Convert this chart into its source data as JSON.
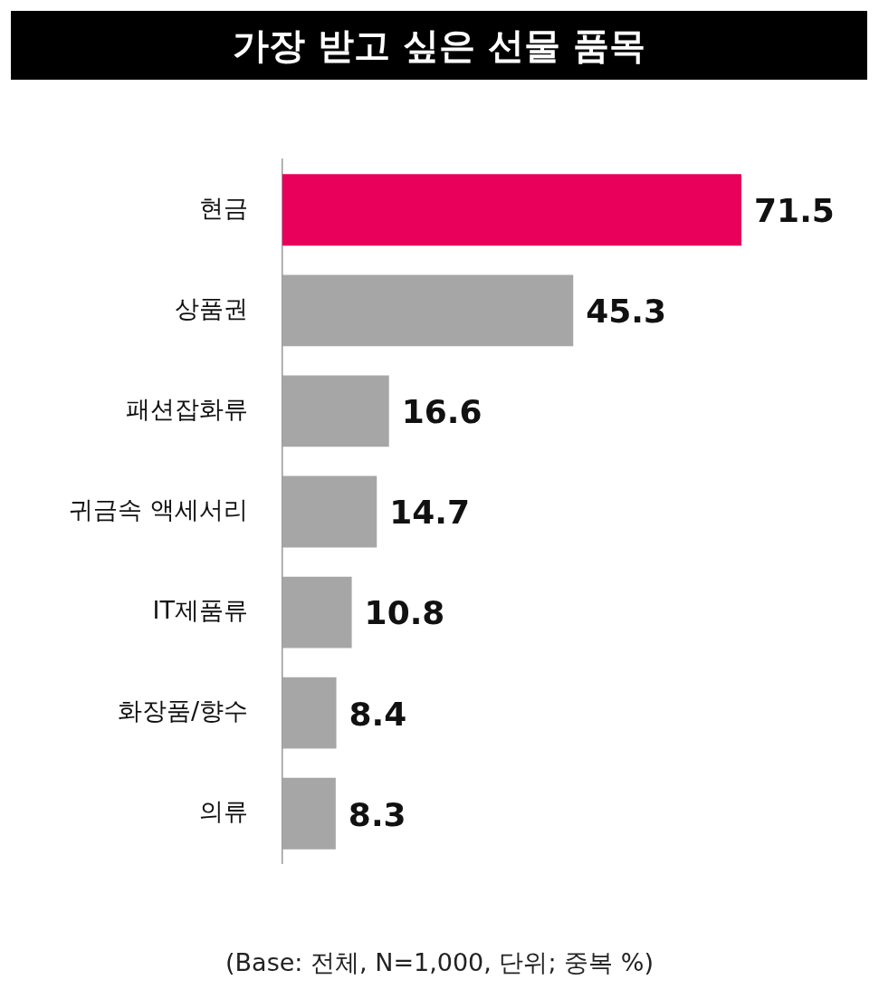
{
  "chart_data": {
    "type": "bar",
    "orientation": "horizontal",
    "title": "가장 받고 싶은 선물 품목",
    "categories": [
      "현금",
      "상품권",
      "패션잡화류",
      "귀금속 액세서리",
      "IT제품류",
      "화장품/향수",
      "의류"
    ],
    "values": [
      71.5,
      45.3,
      16.6,
      14.7,
      10.8,
      8.4,
      8.3
    ],
    "colors": [
      "#e8005a",
      "#a6a6a6",
      "#a6a6a6",
      "#a6a6a6",
      "#a6a6a6",
      "#a6a6a6",
      "#a6a6a6"
    ],
    "data_labels": true,
    "legend": false,
    "annotations": [
      "(Base: 전체, N=1,000, 단위; 중복 %)"
    ]
  }
}
